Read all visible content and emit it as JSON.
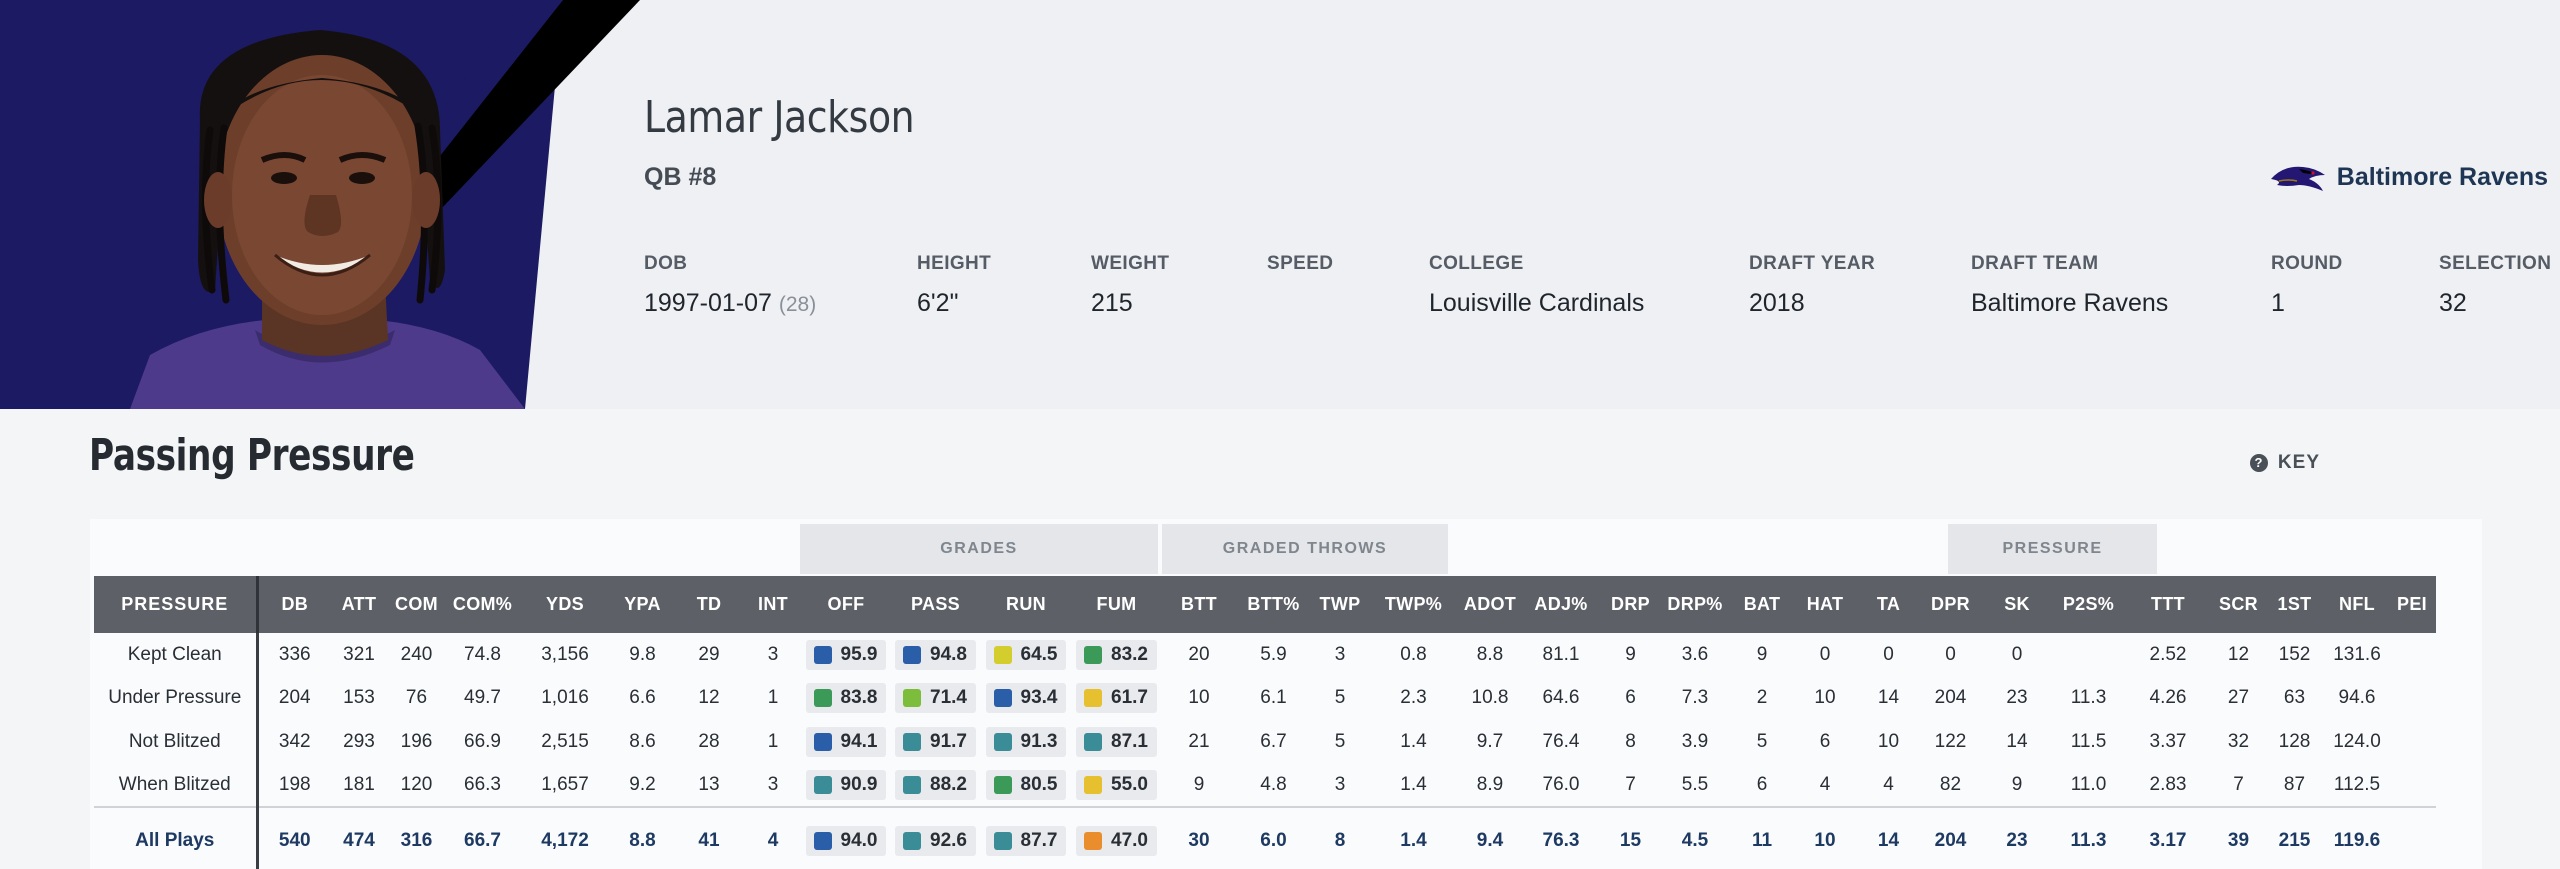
{
  "player": {
    "name": "Lamar Jackson",
    "position": "QB #8",
    "team": "Baltimore Ravens",
    "team_logo_icon": "ravens-logo-icon",
    "bio": [
      {
        "label": "DOB",
        "value": "1997-01-07",
        "extra": "(28)"
      },
      {
        "label": "HEIGHT",
        "value": "6'2\""
      },
      {
        "label": "WEIGHT",
        "value": "215"
      },
      {
        "label": "SPEED",
        "value": ""
      },
      {
        "label": "COLLEGE",
        "value": "Louisville Cardinals"
      },
      {
        "label": "DRAFT YEAR",
        "value": "2018"
      },
      {
        "label": "DRAFT TEAM",
        "value": "Baltimore Ravens"
      },
      {
        "label": "ROUND",
        "value": "1"
      },
      {
        "label": "SELECTION",
        "value": "32"
      }
    ]
  },
  "section": {
    "title": "Passing Pressure",
    "key_label": "KEY",
    "key_icon": "question-circle-icon"
  },
  "table": {
    "groups": {
      "grades": "GRADES",
      "graded_throws": "GRADED THROWS",
      "pressure": "PRESSURE"
    },
    "columns": [
      "PRESSURE",
      "DB",
      "ATT",
      "COM",
      "COM%",
      "YDS",
      "YPA",
      "TD",
      "INT",
      "OFF",
      "PASS",
      "RUN",
      "FUM",
      "BTT",
      "BTT%",
      "TWP",
      "TWP%",
      "ADOT",
      "ADJ%",
      "DRP",
      "DRP%",
      "BAT",
      "HAT",
      "TA",
      "DPR",
      "SK",
      "P2S%",
      "TTT",
      "SCR",
      "1ST",
      "NFL",
      "PEI"
    ],
    "grade_colors": {
      "dark_blue": "#2a5ea8",
      "teal": "#3a8c96",
      "green": "#3b9a57",
      "light_green": "#7cbd3c",
      "yellow": "#d4cd2e",
      "gold": "#e6c02e",
      "orange": "#ea8d2c"
    },
    "rows": [
      {
        "label": "Kept Clean",
        "cells": [
          "336",
          "321",
          "240",
          "74.8",
          "3,156",
          "9.8",
          "29",
          "3"
        ],
        "grades": [
          {
            "v": "95.9",
            "c": "#2a5ea8"
          },
          {
            "v": "94.8",
            "c": "#2a5ea8"
          },
          {
            "v": "64.5",
            "c": "#d4cd2e"
          },
          {
            "v": "83.2",
            "c": "#3b9a57"
          }
        ],
        "rest": [
          "20",
          "5.9",
          "3",
          "0.8",
          "8.8",
          "81.1",
          "9",
          "3.6",
          "9",
          "0",
          "0",
          "0",
          "0",
          "",
          "2.52",
          "12",
          "152",
          "131.6",
          ""
        ]
      },
      {
        "label": "Under Pressure",
        "cells": [
          "204",
          "153",
          "76",
          "49.7",
          "1,016",
          "6.6",
          "12",
          "1"
        ],
        "grades": [
          {
            "v": "83.8",
            "c": "#3b9a57"
          },
          {
            "v": "71.4",
            "c": "#7cbd3c"
          },
          {
            "v": "93.4",
            "c": "#2a5ea8"
          },
          {
            "v": "61.7",
            "c": "#e6c02e"
          }
        ],
        "rest": [
          "10",
          "6.1",
          "5",
          "2.3",
          "10.8",
          "64.6",
          "6",
          "7.3",
          "2",
          "10",
          "14",
          "204",
          "23",
          "11.3",
          "4.26",
          "27",
          "63",
          "94.6",
          ""
        ]
      },
      {
        "label": "Not Blitzed",
        "cells": [
          "342",
          "293",
          "196",
          "66.9",
          "2,515",
          "8.6",
          "28",
          "1"
        ],
        "grades": [
          {
            "v": "94.1",
            "c": "#2a5ea8"
          },
          {
            "v": "91.7",
            "c": "#3a8c96"
          },
          {
            "v": "91.3",
            "c": "#3a8c96"
          },
          {
            "v": "87.1",
            "c": "#3a8c96"
          }
        ],
        "rest": [
          "21",
          "6.7",
          "5",
          "1.4",
          "9.7",
          "76.4",
          "8",
          "3.9",
          "5",
          "6",
          "10",
          "122",
          "14",
          "11.5",
          "3.37",
          "32",
          "128",
          "124.0",
          ""
        ]
      },
      {
        "label": "When Blitzed",
        "cells": [
          "198",
          "181",
          "120",
          "66.3",
          "1,657",
          "9.2",
          "13",
          "3"
        ],
        "grades": [
          {
            "v": "90.9",
            "c": "#3a8c96"
          },
          {
            "v": "88.2",
            "c": "#3a8c96"
          },
          {
            "v": "80.5",
            "c": "#3b9a57"
          },
          {
            "v": "55.0",
            "c": "#e6c02e"
          }
        ],
        "rest": [
          "9",
          "4.8",
          "3",
          "1.4",
          "8.9",
          "76.0",
          "7",
          "5.5",
          "6",
          "4",
          "4",
          "82",
          "9",
          "11.0",
          "2.83",
          "7",
          "87",
          "112.5",
          ""
        ]
      }
    ],
    "total": {
      "label": "All Plays",
      "cells": [
        "540",
        "474",
        "316",
        "66.7",
        "4,172",
        "8.8",
        "41",
        "4"
      ],
      "grades": [
        {
          "v": "94.0",
          "c": "#2a5ea8"
        },
        {
          "v": "92.6",
          "c": "#3a8c96"
        },
        {
          "v": "87.7",
          "c": "#3a8c96"
        },
        {
          "v": "47.0",
          "c": "#ea8d2c"
        }
      ],
      "rest": [
        "30",
        "6.0",
        "8",
        "1.4",
        "9.4",
        "76.3",
        "15",
        "4.5",
        "11",
        "10",
        "14",
        "204",
        "23",
        "11.3",
        "3.17",
        "39",
        "215",
        "119.6",
        ""
      ]
    }
  }
}
